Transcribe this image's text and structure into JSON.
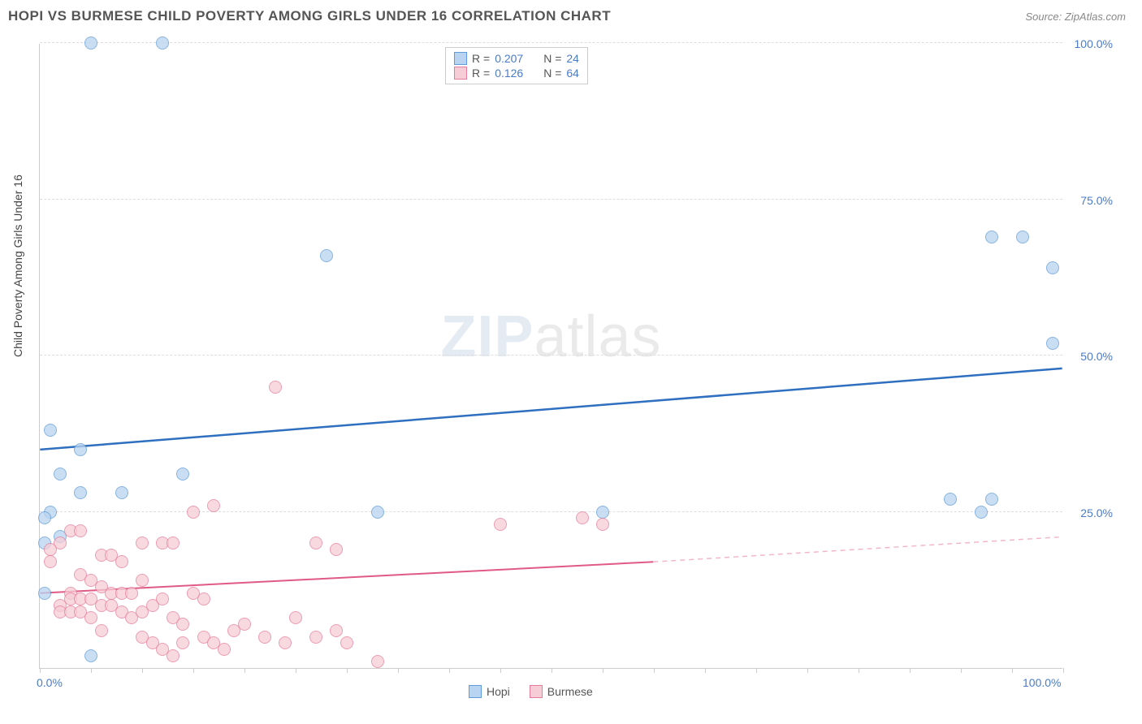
{
  "title": "HOPI VS BURMESE CHILD POVERTY AMONG GIRLS UNDER 16 CORRELATION CHART",
  "source_label": "Source: ZipAtlas.com",
  "watermark": {
    "zip": "ZIP",
    "atlas": "atlas"
  },
  "y_axis_label": "Child Poverty Among Girls Under 16",
  "chart": {
    "type": "scatter",
    "background_color": "#ffffff",
    "grid_color": "#dddddd",
    "axis_color": "#cccccc",
    "xlim": [
      0,
      100
    ],
    "ylim": [
      0,
      100
    ],
    "y_ticks": [
      {
        "v": 25,
        "label": "25.0%"
      },
      {
        "v": 50,
        "label": "50.0%"
      },
      {
        "v": 75,
        "label": "75.0%"
      },
      {
        "v": 100,
        "label": "100.0%"
      }
    ],
    "x_ticks_minor": [
      0,
      5,
      10,
      15,
      20,
      25,
      30,
      35,
      40,
      45,
      50,
      55,
      60,
      65,
      70,
      75,
      80,
      85,
      90,
      95,
      100
    ],
    "x_ticks_labels": [
      {
        "v": 0,
        "label": "0.0%"
      },
      {
        "v": 100,
        "label": "100.0%"
      }
    ],
    "series": [
      {
        "name": "Hopi",
        "fill": "#b9d4f0",
        "stroke": "#5f9bd8",
        "marker_radius": 8,
        "r_value": "0.207",
        "n_value": "24",
        "trend": {
          "x1": 0,
          "y1": 35,
          "x2": 100,
          "y2": 48,
          "color": "#2f6fc0",
          "width": 2.5,
          "dash": ""
        },
        "points": [
          [
            5,
            100
          ],
          [
            12,
            100
          ],
          [
            28,
            66
          ],
          [
            93,
            69
          ],
          [
            96,
            69
          ],
          [
            99,
            64
          ],
          [
            99,
            52
          ],
          [
            1,
            38
          ],
          [
            4,
            35
          ],
          [
            2,
            31
          ],
          [
            14,
            31
          ],
          [
            4,
            28
          ],
          [
            8,
            28
          ],
          [
            1,
            25
          ],
          [
            0.5,
            24
          ],
          [
            33,
            25
          ],
          [
            55,
            25
          ],
          [
            89,
            27
          ],
          [
            93,
            27
          ],
          [
            92,
            25
          ],
          [
            2,
            21
          ],
          [
            0.5,
            20
          ],
          [
            5,
            2
          ],
          [
            0.5,
            12
          ]
        ]
      },
      {
        "name": "Burmese",
        "fill": "#f6cdd6",
        "stroke": "#e77c9a",
        "marker_radius": 8,
        "r_value": "0.126",
        "n_value": "64",
        "trend_solid": {
          "x1": 0,
          "y1": 12,
          "x2": 60,
          "y2": 17,
          "color": "#e05a85",
          "width": 2,
          "dash": ""
        },
        "trend_dashed": {
          "x1": 60,
          "y1": 17,
          "x2": 100,
          "y2": 21,
          "color": "#f4b7c8",
          "width": 1.5,
          "dash": "6,5"
        },
        "points": [
          [
            45,
            23
          ],
          [
            53,
            24
          ],
          [
            55,
            23
          ],
          [
            27,
            20
          ],
          [
            29,
            19
          ],
          [
            15,
            25
          ],
          [
            17,
            26
          ],
          [
            10,
            20
          ],
          [
            12,
            20
          ],
          [
            13,
            20
          ],
          [
            6,
            18
          ],
          [
            7,
            18
          ],
          [
            8,
            17
          ],
          [
            3,
            22
          ],
          [
            4,
            22
          ],
          [
            2,
            20
          ],
          [
            1,
            19
          ],
          [
            1,
            17
          ],
          [
            4,
            15
          ],
          [
            5,
            14
          ],
          [
            6,
            13
          ],
          [
            7,
            12
          ],
          [
            8,
            12
          ],
          [
            9,
            12
          ],
          [
            3,
            12
          ],
          [
            3,
            11
          ],
          [
            4,
            11
          ],
          [
            5,
            11
          ],
          [
            6,
            10
          ],
          [
            7,
            10
          ],
          [
            2,
            10
          ],
          [
            2,
            9
          ],
          [
            3,
            9
          ],
          [
            4,
            9
          ],
          [
            5,
            8
          ],
          [
            8,
            9
          ],
          [
            9,
            8
          ],
          [
            10,
            9
          ],
          [
            11,
            10
          ],
          [
            12,
            11
          ],
          [
            13,
            8
          ],
          [
            14,
            7
          ],
          [
            15,
            12
          ],
          [
            16,
            11
          ],
          [
            10,
            5
          ],
          [
            11,
            4
          ],
          [
            12,
            3
          ],
          [
            13,
            2
          ],
          [
            14,
            4
          ],
          [
            16,
            5
          ],
          [
            17,
            4
          ],
          [
            18,
            3
          ],
          [
            19,
            6
          ],
          [
            20,
            7
          ],
          [
            22,
            5
          ],
          [
            24,
            4
          ],
          [
            25,
            8
          ],
          [
            27,
            5
          ],
          [
            29,
            6
          ],
          [
            30,
            4
          ],
          [
            33,
            1
          ],
          [
            23,
            45
          ],
          [
            10,
            14
          ],
          [
            6,
            6
          ]
        ]
      }
    ]
  },
  "legend_top": {
    "r_prefix": "R =",
    "n_prefix": "N ="
  },
  "legend_bottom": {
    "hopi": "Hopi",
    "burmese": "Burmese"
  }
}
